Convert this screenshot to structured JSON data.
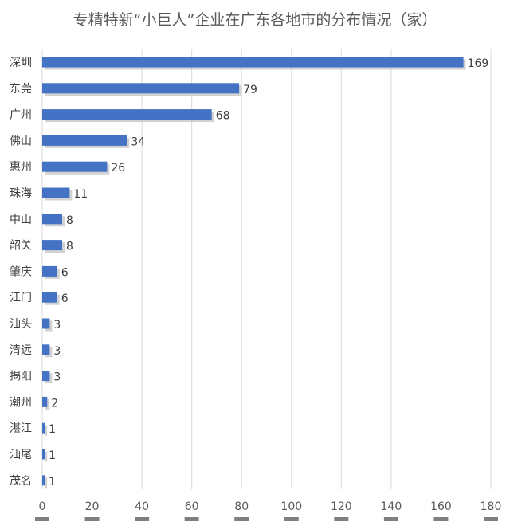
{
  "chart_data": {
    "type": "bar",
    "orientation": "horizontal",
    "title": "专精特新“小巨人”企业在广东各地市的分布情况（家）",
    "categories": [
      "深圳",
      "东莞",
      "广州",
      "佛山",
      "惠州",
      "珠海",
      "中山",
      "韶关",
      "肇庆",
      "江门",
      "汕头",
      "清远",
      "揭阳",
      "潮州",
      "湛江",
      "汕尾",
      "茂名"
    ],
    "values": [
      169,
      79,
      68,
      34,
      26,
      11,
      8,
      8,
      6,
      6,
      3,
      3,
      3,
      2,
      1,
      1,
      1
    ],
    "value_labels": [
      "169",
      "79",
      "68",
      "34",
      "26",
      "11",
      "8",
      "8",
      "6",
      "6",
      "3",
      "3",
      "3",
      "2",
      "1",
      "1",
      "1"
    ],
    "xlim": [
      0,
      180
    ],
    "x_ticks": [
      "0",
      "20",
      "40",
      "60",
      "80",
      "100",
      "120",
      "140",
      "160",
      "180"
    ],
    "grid": "vertical",
    "bar_color": "#4472C4",
    "grid_color": "#D9D9D9"
  }
}
